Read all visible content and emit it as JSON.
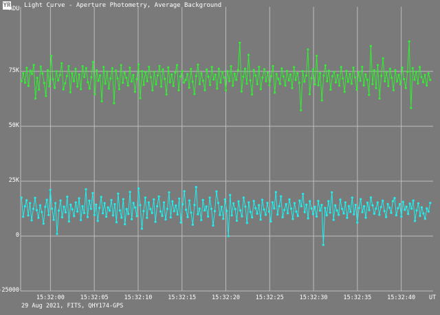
{
  "window": {
    "icon_label": "YR",
    "title": "Light Curve - Aperture Photometry, Average Background"
  },
  "footer": "29 Aug 2021, FITS, QHY174-GPS",
  "colors": {
    "background": "#7a7a7a",
    "grid": "#bdbdbd",
    "target_series": "#33ee33",
    "comparison_series": "#22eeee"
  },
  "chart_data": {
    "type": "line",
    "title": "Light Curve - Aperture Photometry, Average Background",
    "ylabel": "ADU",
    "xlabel": "UT",
    "ylim": [
      -25000,
      100000
    ],
    "xlim_seconds": [
      56.6,
      43.4
    ],
    "y_ticks": [
      {
        "value": 75000,
        "label": "75K"
      },
      {
        "value": 50000,
        "label": "50K"
      },
      {
        "value": 25000,
        "label": "25K"
      },
      {
        "value": 0,
        "label": "0"
      },
      {
        "value": -25000,
        "label": "-25000"
      }
    ],
    "x_ticks": [
      "15:32:00",
      "15:32:05",
      "15:32:10",
      "15:32:15",
      "15:32:20",
      "15:32:25",
      "15:32:30",
      "15:32:35",
      "15:32:40"
    ],
    "grid": true,
    "markers": "dots",
    "series": [
      {
        "color": "#33ee33",
        "values": [
          70500,
          74200,
          69800,
          76600,
          68400,
          75300,
          73800,
          77900,
          62700,
          72100,
          66700,
          77200,
          74000,
          69700,
          63800,
          75500,
          68200,
          82100,
          71400,
          67500,
          75100,
          70900,
          73300,
          78700,
          66800,
          69600,
          72900,
          77400,
          65500,
          74100,
          70500,
          76200,
          68100,
          73600,
          66900,
          77300,
          72400,
          76500,
          70100,
          67200,
          72300,
          79300,
          64600,
          75500,
          70700,
          73200,
          61400,
          77000,
          69400,
          74900,
          67200,
          71800,
          76400,
          60500,
          75400,
          71800,
          66900,
          77800,
          69800,
          74300,
          72100,
          68600,
          76700,
          70400,
          73300,
          65700,
          71500,
          78200,
          62800,
          75100,
          68900,
          74600,
          70500,
          77100,
          72300,
          66400,
          74800,
          69100,
          73200,
          77400,
          68100,
          75900,
          71600,
          64500,
          76800,
          70100,
          73600,
          68400,
          74400,
          77800,
          66400,
          72700,
          75100,
          69900,
          71100,
          73800,
          67600,
          76100,
          70300,
          64700,
          72900,
          78000,
          69200,
          74100,
          70700,
          66500,
          75800,
          72600,
          68800,
          77000,
          71300,
          73500,
          67200,
          76200,
          69900,
          74700,
          72200,
          66400,
          75100,
          70600,
          77300,
          68500,
          73900,
          71200,
          75600,
          88000,
          65800,
          72600,
          76200,
          69400,
          82500,
          70900,
          64500,
          75700,
          73100,
          69200,
          77100,
          66900,
          72200,
          76000,
          70500,
          74400,
          68700,
          72800,
          77400,
          65300,
          73800,
          71600,
          69300,
          76300,
          72700,
          68600,
          75200,
          70900,
          73600,
          67400,
          76900,
          71100,
          74200,
          69800,
          57300,
          75100,
          70300,
          73100,
          85000,
          64600,
          71900,
          76000,
          69100,
          82100,
          68700,
          74200,
          61800,
          73100,
          77700,
          70500,
          75300,
          66700,
          72800,
          74800,
          70000,
          73300,
          68500,
          77000,
          71800,
          65700,
          75200,
          70300,
          73800,
          69400,
          76700,
          72300,
          66700,
          74600,
          70700,
          77100,
          68600,
          73600,
          71200,
          64300,
          86500,
          69200,
          75500,
          67400,
          77800,
          62700,
          73000,
          80900,
          70500,
          74600,
          68300,
          76200,
          72100,
          66500,
          75600,
          70400,
          73400,
          69100,
          76700,
          71500,
          67400,
          74800,
          88600,
          58300,
          76500,
          71200,
          74800,
          69500,
          77000,
          72400,
          70100,
          73400,
          68600,
          74200,
          71100
        ]
      },
      {
        "color": "#22eeee",
        "values": [
          17500,
          8800,
          13600,
          16300,
          9400,
          15000,
          7200,
          12400,
          17400,
          11800,
          8300,
          14000,
          10900,
          5700,
          13300,
          16500,
          9600,
          21000,
          12500,
          7400,
          15000,
          1000,
          11600,
          16200,
          8600,
          13400,
          10800,
          17900,
          6700,
          14300,
          12200,
          9100,
          15300,
          11200,
          17200,
          7300,
          13600,
          10500,
          21300,
          8700,
          16100,
          12400,
          19600,
          9600,
          14300,
          6900,
          12800,
          17800,
          10400,
          15000,
          8800,
          13100,
          11600,
          16400,
          9400,
          14500,
          6300,
          19300,
          11700,
          8400,
          16800,
          5400,
          12300,
          10100,
          20100,
          7700,
          15100,
          13000,
          9100,
          21700,
          14100,
          3400,
          11400,
          17500,
          8300,
          15300,
          12300,
          10500,
          16700,
          6500,
          13600,
          18000,
          11200,
          9200,
          15300,
          7600,
          12400,
          19900,
          8500,
          15800,
          11300,
          13900,
          9800,
          17100,
          6200,
          14500,
          20400,
          12000,
          8700,
          16200,
          10700,
          5200,
          14200,
          22300,
          9900,
          12500,
          7300,
          16400,
          11700,
          13500,
          8900,
          17500,
          12400,
          4800,
          11400,
          20300,
          15100,
          9600,
          13300,
          7900,
          16700,
          11400,
          0.5,
          18700,
          9400,
          14900,
          12300,
          7000,
          15800,
          11700,
          9000,
          17500,
          13400,
          6000,
          15300,
          11000,
          8500,
          16000,
          12700,
          10200,
          14100,
          7500,
          16500,
          12100,
          9700,
          15100,
          11200,
          6700,
          15400,
          12600,
          20000,
          9800,
          13600,
          18100,
          8600,
          11900,
          14600,
          10400,
          16700,
          12500,
          7800,
          15000,
          11200,
          9200,
          16200,
          13600,
          19200,
          10900,
          14300,
          8100,
          15900,
          12600,
          10000,
          13300,
          8900,
          16000,
          11600,
          14200,
          -4000,
          12800,
          9500,
          15900,
          10700,
          19900,
          7400,
          14000,
          11700,
          9700,
          16600,
          12400,
          10300,
          15300,
          8300,
          13700,
          11000,
          17500,
          9900,
          14200,
          6200,
          12800,
          16800,
          10900,
          13600,
          8400,
          15200,
          11800,
          17600,
          14000,
          10200,
          12500,
          15300,
          9700,
          13200,
          16100,
          11400,
          8700,
          14600,
          12900,
          10600,
          15900,
          17300,
          9500,
          12700,
          14600,
          8900,
          15600,
          11900,
          13400,
          10100,
          14800,
          12500,
          16200,
          6900,
          11700,
          14900,
          9200,
          13100,
          10300,
          7900,
          12600,
          11200,
          15100
        ]
      }
    ]
  }
}
